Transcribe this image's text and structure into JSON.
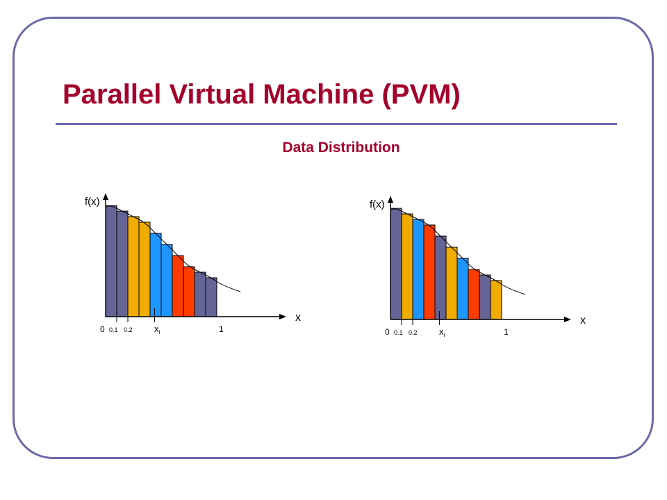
{
  "slide": {
    "title": "Parallel Virtual Machine (PVM)",
    "subtitle": "Data Distribution"
  },
  "colors": {
    "frame": "#6a6aa8",
    "title": "#a4002c",
    "slate": "#646496",
    "orange": "#f0ac00",
    "blue": "#1e96ff",
    "red": "#ff3c00"
  },
  "chart_data": [
    {
      "type": "bar",
      "distribution": "block",
      "ylabel": "f(x)",
      "xlabel": "x",
      "tick_labels": [
        "0",
        "0.1",
        "0.2",
        "x",
        "1"
      ],
      "xi_label": {
        "main": "x",
        "sub": "i"
      },
      "bar_colors": [
        "slate",
        "slate",
        "orange",
        "orange",
        "blue",
        "blue",
        "red",
        "red",
        "slate",
        "slate"
      ],
      "values": [
        1.0,
        0.95,
        0.9,
        0.85,
        0.75,
        0.65,
        0.55,
        0.45,
        0.4,
        0.35
      ]
    },
    {
      "type": "bar",
      "distribution": "cyclic",
      "ylabel": "f(x)",
      "xlabel": "x",
      "tick_labels": [
        "0",
        "0.1",
        "0.2",
        "x",
        "1"
      ],
      "xi_label": {
        "main": "x",
        "sub": "i"
      },
      "bar_colors": [
        "slate",
        "orange",
        "blue",
        "red",
        "slate",
        "orange",
        "blue",
        "red",
        "slate",
        "orange"
      ],
      "values": [
        1.0,
        0.95,
        0.9,
        0.85,
        0.75,
        0.65,
        0.55,
        0.45,
        0.4,
        0.35
      ]
    }
  ]
}
